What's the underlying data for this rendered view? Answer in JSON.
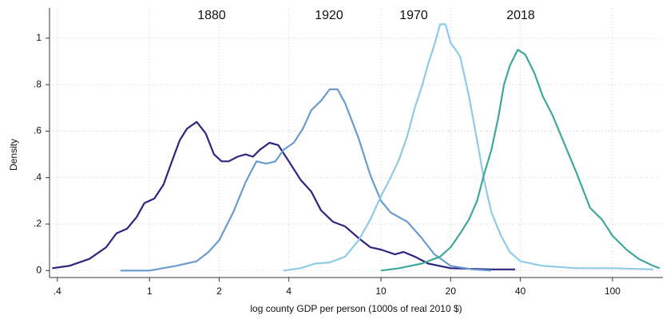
{
  "chart_data": {
    "type": "line",
    "log_x": true,
    "grid": true,
    "ylabel": "Density",
    "xlabel": "log county GDP per person (1000s of real 2010 $)",
    "xlim": [
      0.37,
      165
    ],
    "ylim": [
      -0.03,
      1.13
    ],
    "xticks": [
      {
        "value": 0.4,
        "label": ".4"
      },
      1,
      2,
      4,
      10,
      20,
      40,
      100
    ],
    "yticks": [
      0,
      {
        "value": 0.2,
        "label": ".2"
      },
      {
        "value": 0.4,
        "label": ".4"
      },
      {
        "value": 0.6,
        "label": ".6"
      },
      {
        "value": 0.8,
        "label": ".8"
      },
      1
    ],
    "series": [
      {
        "name": "1880",
        "color": "#2e2580",
        "x": [
          0.38,
          0.45,
          0.55,
          0.65,
          0.72,
          0.8,
          0.88,
          0.95,
          1.05,
          1.15,
          1.25,
          1.35,
          1.45,
          1.6,
          1.75,
          1.9,
          2.05,
          2.2,
          2.4,
          2.6,
          2.8,
          3.0,
          3.3,
          3.6,
          4.0,
          4.5,
          5.0,
          5.5,
          6.2,
          7.0,
          8.0,
          9.0,
          10,
          11.5,
          12.5,
          14,
          16,
          20,
          30,
          38
        ],
        "values": [
          0.01,
          0.02,
          0.05,
          0.1,
          0.16,
          0.18,
          0.23,
          0.29,
          0.31,
          0.37,
          0.47,
          0.56,
          0.61,
          0.64,
          0.59,
          0.5,
          0.47,
          0.47,
          0.49,
          0.5,
          0.49,
          0.52,
          0.55,
          0.54,
          0.47,
          0.39,
          0.34,
          0.26,
          0.21,
          0.19,
          0.14,
          0.1,
          0.09,
          0.07,
          0.08,
          0.06,
          0.03,
          0.01,
          0.005,
          0.005
        ]
      },
      {
        "name": "1920",
        "color": "#6a9bd0",
        "x": [
          0.75,
          1.0,
          1.3,
          1.6,
          1.8,
          2.0,
          2.3,
          2.6,
          2.9,
          3.2,
          3.5,
          3.8,
          4.2,
          4.6,
          5.0,
          5.5,
          6.0,
          6.5,
          7.0,
          8.0,
          9.0,
          10,
          11,
          13,
          15,
          17,
          20,
          25,
          30
        ],
        "values": [
          0,
          0,
          0.02,
          0.04,
          0.08,
          0.13,
          0.25,
          0.38,
          0.47,
          0.46,
          0.47,
          0.52,
          0.55,
          0.61,
          0.69,
          0.73,
          0.78,
          0.78,
          0.72,
          0.57,
          0.41,
          0.3,
          0.25,
          0.21,
          0.14,
          0.07,
          0.02,
          0.005,
          0
        ]
      },
      {
        "name": "1970",
        "color": "#8fcbe8",
        "x": [
          3.8,
          4.5,
          5.2,
          6,
          7,
          8,
          9,
          10,
          11,
          12,
          13,
          14,
          15,
          16,
          17,
          18,
          19,
          20,
          21,
          22,
          24,
          26,
          28,
          30,
          33,
          36,
          40,
          50,
          70,
          100,
          150
        ],
        "values": [
          0,
          0.01,
          0.03,
          0.035,
          0.06,
          0.13,
          0.22,
          0.32,
          0.4,
          0.48,
          0.58,
          0.7,
          0.79,
          0.89,
          0.97,
          1.06,
          1.06,
          0.98,
          0.95,
          0.92,
          0.75,
          0.56,
          0.38,
          0.25,
          0.15,
          0.08,
          0.04,
          0.02,
          0.01,
          0.01,
          0.005
        ]
      },
      {
        "name": "2018",
        "color": "#3ea89a",
        "x": [
          10,
          12,
          15,
          18,
          20,
          22,
          24,
          26,
          28,
          30,
          32,
          34,
          36,
          39,
          42,
          46,
          50,
          55,
          60,
          70,
          80,
          90,
          100,
          115,
          130,
          150,
          160
        ],
        "values": [
          0,
          0.01,
          0.03,
          0.06,
          0.1,
          0.16,
          0.22,
          0.3,
          0.42,
          0.52,
          0.65,
          0.8,
          0.88,
          0.95,
          0.93,
          0.85,
          0.75,
          0.67,
          0.58,
          0.42,
          0.27,
          0.22,
          0.15,
          0.09,
          0.05,
          0.02,
          0.01
        ]
      }
    ]
  }
}
